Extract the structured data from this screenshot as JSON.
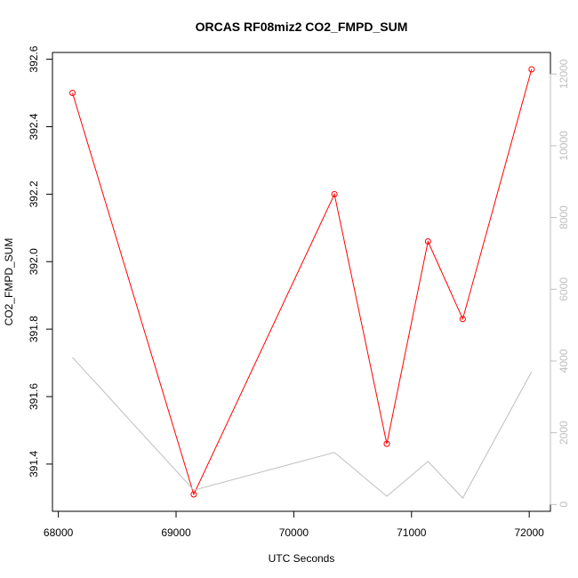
{
  "chart_data": {
    "type": "line",
    "title": "ORCAS RF08miz2 CO2_FMPD_SUM",
    "xlabel": "UTC Seconds",
    "ylabel": "CO2_FMPD_SUM",
    "xlim": [
      67950,
      72180
    ],
    "ylim": [
      391.26,
      392.62
    ],
    "y2lim": [
      -190,
      12600
    ],
    "x_ticks": [
      68000,
      69000,
      70000,
      71000,
      72000
    ],
    "y_ticks": [
      391.4,
      391.6,
      391.8,
      392.0,
      392.2,
      392.4,
      392.6
    ],
    "y_tick_labels": [
      "391.4",
      "391.6",
      "391.8",
      "392.0",
      "392.2",
      "392.4",
      "392.6"
    ],
    "y2_ticks": [
      0,
      2000,
      4000,
      6000,
      8000,
      10000,
      12000
    ],
    "series": [
      {
        "axis": "left",
        "color": "#ff0000",
        "markers": "open-circle",
        "x": [
          68120,
          69150,
          70345,
          70790,
          71140,
          71435,
          72020
        ],
        "y": [
          392.5,
          391.31,
          392.2,
          391.46,
          392.06,
          391.83,
          392.57
        ]
      },
      {
        "axis": "right",
        "color": "#bebebe",
        "markers": "none",
        "x": [
          68120,
          69150,
          70345,
          70790,
          71140,
          71435,
          72020
        ],
        "y": [
          4100,
          400,
          1450,
          230,
          1200,
          180,
          3700
        ]
      }
    ],
    "grid": false,
    "legend": "none"
  }
}
